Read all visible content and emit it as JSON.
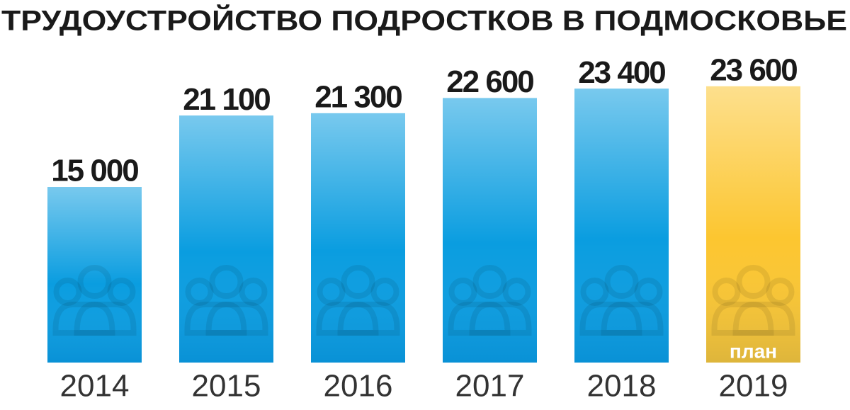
{
  "chart_data": {
    "type": "bar",
    "title": "ТРУДОУСТРОЙСТВО ПОДРОСТКОВ В ПОДМОСКОВЬЕ",
    "categories": [
      "2014",
      "2015",
      "2016",
      "2017",
      "2018",
      "2019"
    ],
    "values": [
      15000,
      21100,
      21300,
      22600,
      23400,
      23600
    ],
    "value_labels": [
      "15 000",
      "21 100",
      "21 300",
      "22 600",
      "23 400",
      "23 600"
    ],
    "colors": [
      "#0a9de0",
      "#0a9de0",
      "#0a9de0",
      "#0a9de0",
      "#0a9de0",
      "#fcc630"
    ],
    "annotation": {
      "index": 5,
      "text": "план"
    }
  }
}
